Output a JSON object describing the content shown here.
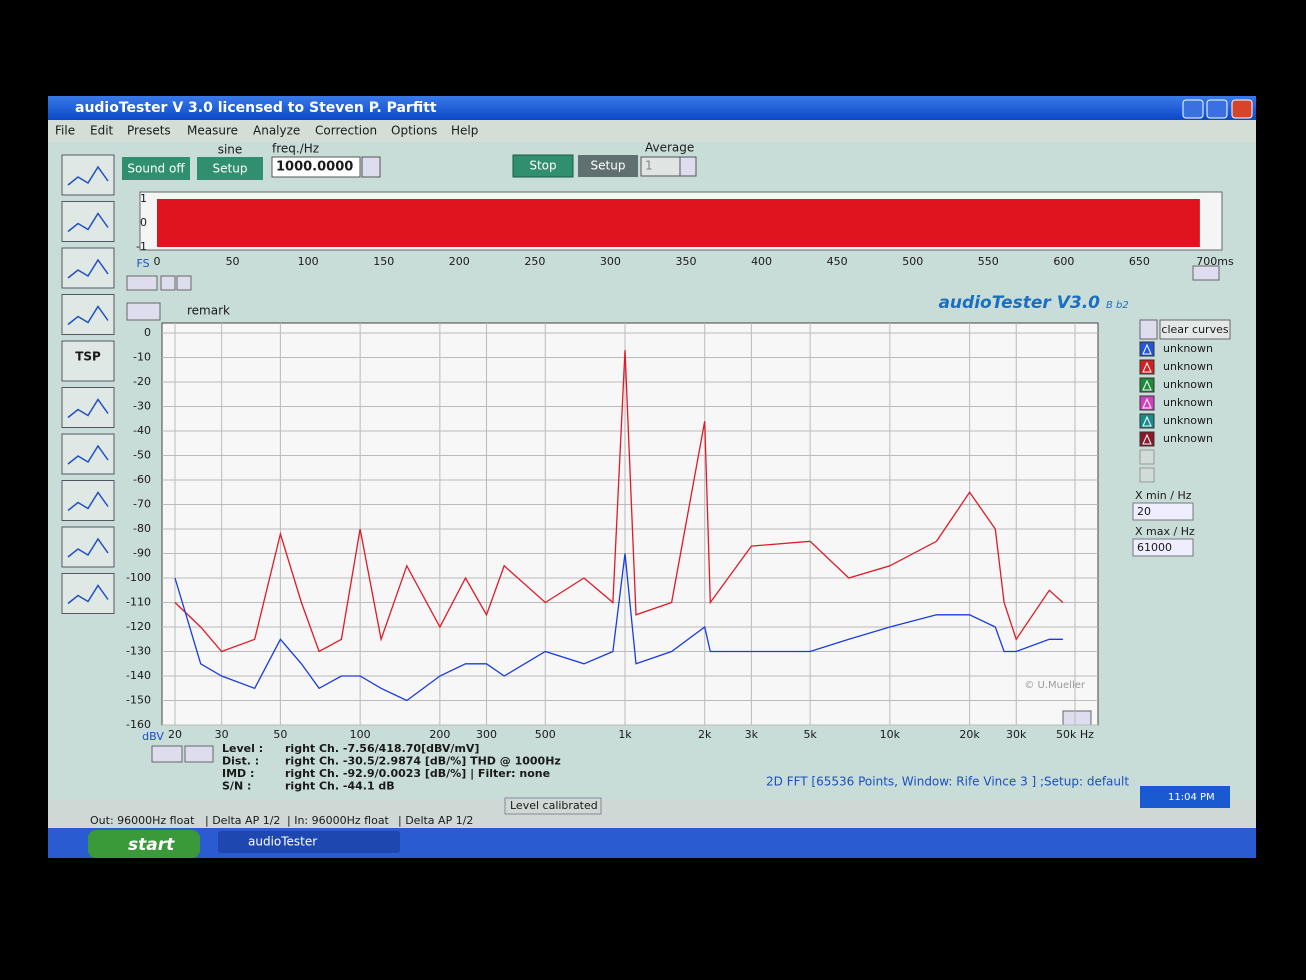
{
  "window": {
    "title": "audioTester  V 3.0   licensed to Steven P. Parfitt",
    "menu": [
      "File",
      "Edit",
      "Presets",
      "Measure",
      "Analyze",
      "Correction",
      "Options",
      "Help"
    ]
  },
  "toolbar": {
    "sound_off": "Sound off",
    "signal": "sine",
    "setup_generator": "Setup",
    "freq_label": "freq./Hz",
    "freq_value": "1000.0000",
    "stop": "Stop",
    "setup_analyzer": "Setup",
    "average_label": "Average",
    "average_value": "1",
    "icon_label": "TSP"
  },
  "chart_data": [
    {
      "type": "band",
      "y_label": "FS",
      "xlim": [
        0,
        700
      ],
      "ylim": [
        -1,
        1
      ],
      "yticks": [
        1,
        0,
        -1
      ],
      "xticks": [
        0,
        50,
        100,
        150,
        200,
        250,
        300,
        350,
        400,
        450,
        500,
        550,
        600,
        650,
        {
          "value": 700,
          "label": "700ms"
        }
      ],
      "x": [
        0,
        690
      ],
      "upper": [
        1,
        1
      ],
      "lower": [
        -1,
        -1
      ],
      "color": "#e0141e"
    },
    {
      "type": "line",
      "xlog": true,
      "grid": true,
      "y_label": "dBV",
      "xlim": [
        20,
        50000
      ],
      "ylim": [
        -160,
        0
      ],
      "yticks": [
        0,
        -10,
        -20,
        -30,
        -40,
        -50,
        -60,
        -70,
        -80,
        -90,
        -100,
        -110,
        -120,
        -130,
        -140,
        -150,
        -160
      ],
      "xticks": [
        20,
        30,
        50,
        100,
        200,
        300,
        500,
        {
          "value": 1000,
          "label": "1k"
        },
        {
          "value": 2000,
          "label": "2k"
        },
        {
          "value": 3000,
          "label": "3k"
        },
        {
          "value": 5000,
          "label": "5k"
        },
        {
          "value": 10000,
          "label": "10k"
        },
        {
          "value": 20000,
          "label": "20k"
        },
        {
          "value": 30000,
          "label": "30k"
        },
        {
          "value": 50000,
          "label": "50k Hz"
        }
      ],
      "x": [
        20,
        25,
        30,
        40,
        50,
        60,
        70,
        85,
        100,
        120,
        150,
        200,
        250,
        300,
        350,
        500,
        700,
        900,
        1000,
        1100,
        1500,
        2000,
        2100,
        3000,
        5000,
        7000,
        10000,
        15000,
        20000,
        25000,
        27000,
        30000,
        40000,
        45000
      ],
      "series": [
        {
          "color": "#e01a28",
          "values": [
            -110,
            -120,
            -130,
            -125,
            -82,
            -110,
            -130,
            -125,
            -80,
            -125,
            -95,
            -120,
            -100,
            -115,
            -95,
            -110,
            -100,
            -110,
            -7,
            -115,
            -110,
            -36,
            -110,
            -87,
            -85,
            -100,
            -95,
            -85,
            -65,
            -80,
            -110,
            -125,
            -105,
            -110
          ]
        },
        {
          "color": "#1a3ce0",
          "values": [
            -100,
            -135,
            -140,
            -145,
            -125,
            -135,
            -145,
            -140,
            -140,
            -145,
            -150,
            -140,
            -135,
            -135,
            -140,
            -130,
            -135,
            -130,
            -90,
            -135,
            -130,
            -120,
            -130,
            -130,
            -130,
            -125,
            -120,
            -115,
            -115,
            -120,
            -130,
            -130,
            -125,
            -125
          ]
        }
      ]
    }
  ],
  "panel": {
    "remark": "remark",
    "brand": "audioTester V3.0",
    "brand_build": "B b2",
    "clear_curves": "clear curves",
    "xmin_label": "X min / Hz",
    "xmin_value": "20",
    "xmax_label": "X max / Hz",
    "xmax_value": "61000",
    "copyright": "© U.Mueller"
  },
  "legend": [
    {
      "label": "unknown",
      "color": "#2255dd"
    },
    {
      "label": "unknown",
      "color": "#d42020"
    },
    {
      "label": "unknown",
      "color": "#1f8a3a"
    },
    {
      "label": "unknown",
      "color": "#d040c0"
    },
    {
      "label": "unknown",
      "color": "#1a8a8a"
    },
    {
      "label": "unknown",
      "color": "#8a1a2a"
    }
  ],
  "readout": {
    "rows": [
      [
        "Level :",
        "right Ch. -7.56/418.70[dBV/mV]"
      ],
      [
        "Dist. :",
        "right Ch. -30.5/2.9874 [dB/%] THD @ 1000Hz"
      ],
      [
        "IMD :",
        "right Ch. -92.9/0.0023 [dB/%] |   Filter: none"
      ],
      [
        "S/N :",
        "right Ch. -44.1 dB"
      ]
    ],
    "fft_info": "2D FFT [65536 Points, Window: Rife Vince 3 ] ;Setup: default"
  },
  "status_bar": [
    "Out: 96000Hz float",
    "| Delta AP 1/2",
    "| In: 96000Hz float",
    "| Delta AP 1/2",
    "Level calibrated"
  ],
  "taskbar": {
    "start": "start",
    "task": "audioTester",
    "clock": "11:04 PM"
  }
}
